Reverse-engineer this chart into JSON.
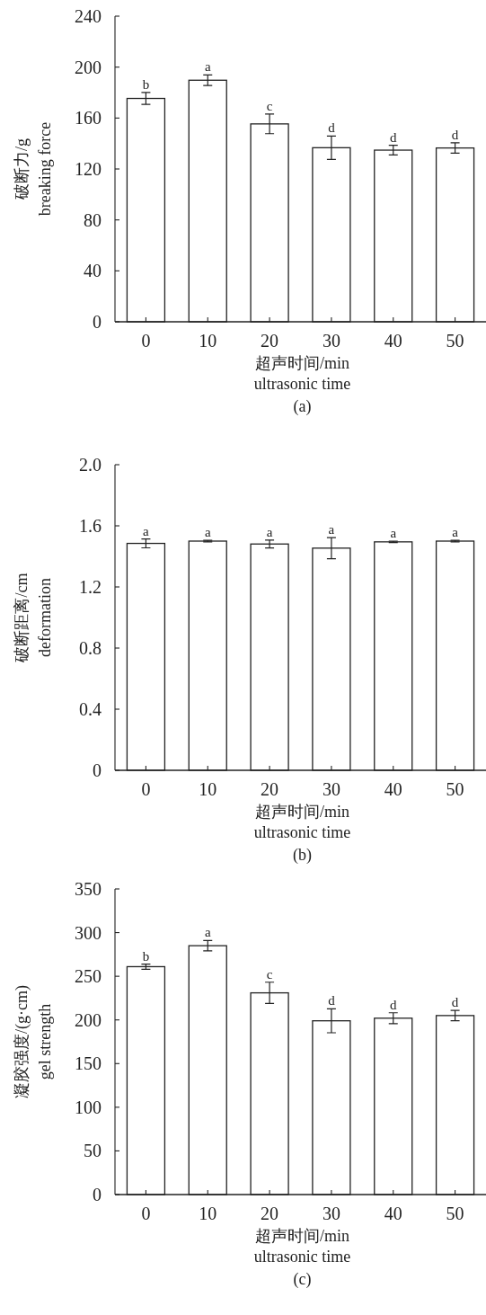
{
  "chart_data": [
    {
      "type": "bar",
      "ylabel": "破断力/g\nbreaking force",
      "xlabel": "超声时间/min\nultrasonic time",
      "categories": [
        "0",
        "10",
        "20",
        "30",
        "40",
        "50"
      ],
      "values": [
        175.4,
        189.7,
        155.4,
        136.7,
        134.8,
        136.5
      ],
      "errors": [
        4.7,
        4.1,
        7.7,
        9.2,
        3.8,
        4.0
      ],
      "color": "#ffffff",
      "ylim": [
        0,
        240
      ],
      "yticks": [
        0,
        40,
        80,
        120,
        160,
        200,
        240
      ],
      "annotations": [
        {
          "text": "b",
          "x": "0",
          "y": 180.1
        },
        {
          "text": "a",
          "x": "10",
          "y": 193.8
        },
        {
          "text": "c",
          "x": "20",
          "y": 163.1
        },
        {
          "text": "d",
          "x": "30",
          "y": 145.9
        },
        {
          "text": "d",
          "x": "40",
          "y": 138.6
        },
        {
          "text": "d",
          "x": "50",
          "y": 140.5
        },
        "(a)"
      ]
    },
    {
      "type": "bar",
      "ylabel": "破断距离/cm\ndeformation",
      "xlabel": "超声时间/min\nultrasonic time",
      "categories": [
        "0",
        "10",
        "20",
        "30",
        "40",
        "50"
      ],
      "values": [
        1.485,
        1.5,
        1.481,
        1.454,
        1.495,
        1.5
      ],
      "errors": [
        0.029,
        0.005,
        0.026,
        0.069,
        0.005,
        0.005
      ],
      "color": "#ffffff",
      "ylim": [
        0,
        2
      ],
      "yticks": [
        0,
        0.4,
        0.8,
        1.2,
        1.6,
        {
          "value": 2,
          "label": "2.0"
        }
      ],
      "annotations": [
        {
          "text": "a",
          "x": "0",
          "y": 1.514
        },
        {
          "text": "a",
          "x": "10",
          "y": 1.505
        },
        {
          "text": "a",
          "x": "20",
          "y": 1.507
        },
        {
          "text": "a",
          "x": "30",
          "y": 1.523
        },
        {
          "text": "a",
          "x": "40",
          "y": 1.5
        },
        {
          "text": "a",
          "x": "50",
          "y": 1.505
        },
        "(b)"
      ]
    },
    {
      "type": "bar",
      "ylabel": "凝胶强度/(g·cm)\ngel strength",
      "xlabel": "超声时间/min\nultrasonic time",
      "categories": [
        "0",
        "10",
        "20",
        "30",
        "40",
        "50"
      ],
      "values": [
        261,
        285,
        231,
        199,
        202,
        205
      ],
      "errors": [
        3.0,
        6.0,
        12.2,
        13.7,
        6.2,
        6.0
      ],
      "color": "#ffffff",
      "ylim": [
        0,
        350
      ],
      "yticks": [
        0,
        50,
        100,
        150,
        200,
        250,
        300,
        350
      ],
      "annotations": [
        {
          "text": "b",
          "x": "0",
          "y": 264
        },
        {
          "text": "a",
          "x": "10",
          "y": 291
        },
        {
          "text": "c",
          "x": "20",
          "y": 242.7
        },
        {
          "text": "d",
          "x": "30",
          "y": 213
        },
        {
          "text": "d",
          "x": "40",
          "y": 208.2
        },
        {
          "text": "d",
          "x": "50",
          "y": 211
        },
        "(c)"
      ]
    }
  ]
}
